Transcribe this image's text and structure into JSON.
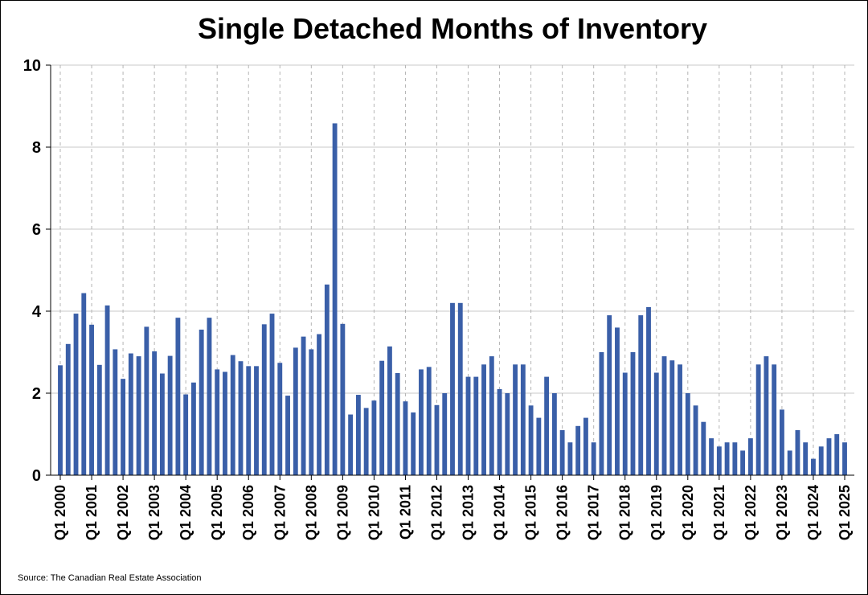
{
  "chart_data": {
    "type": "bar",
    "title": "Single Detached Months of Inventory",
    "xlabel": "",
    "ylabel": "",
    "ylim": [
      0,
      10
    ],
    "yticks": [
      0,
      2,
      4,
      6,
      8,
      10
    ],
    "grid": true,
    "bar_color": "#3A5FA8",
    "categories": [
      "Q1 2000",
      "Q2 2000",
      "Q3 2000",
      "Q4 2000",
      "Q1 2001",
      "Q2 2001",
      "Q3 2001",
      "Q4 2001",
      "Q1 2002",
      "Q2 2002",
      "Q3 2002",
      "Q4 2002",
      "Q1 2003",
      "Q2 2003",
      "Q3 2003",
      "Q4 2003",
      "Q1 2004",
      "Q2 2004",
      "Q3 2004",
      "Q4 2004",
      "Q1 2005",
      "Q2 2005",
      "Q3 2005",
      "Q4 2005",
      "Q1 2006",
      "Q2 2006",
      "Q3 2006",
      "Q4 2006",
      "Q1 2007",
      "Q2 2007",
      "Q3 2007",
      "Q4 2007",
      "Q1 2008",
      "Q2 2008",
      "Q3 2008",
      "Q4 2008",
      "Q1 2009",
      "Q2 2009",
      "Q3 2009",
      "Q4 2009",
      "Q1 2010",
      "Q2 2010",
      "Q3 2010",
      "Q4 2010",
      "Q1 2011",
      "Q2 2011",
      "Q3 2011",
      "Q4 2011",
      "Q1 2012",
      "Q2 2012",
      "Q3 2012",
      "Q4 2012",
      "Q1 2013",
      "Q2 2013",
      "Q3 2013",
      "Q4 2013",
      "Q1 2014",
      "Q2 2014",
      "Q3 2014",
      "Q4 2014",
      "Q1 2015",
      "Q2 2015",
      "Q3 2015",
      "Q4 2015",
      "Q1 2016",
      "Q2 2016",
      "Q3 2016",
      "Q4 2016",
      "Q1 2017",
      "Q2 2017",
      "Q3 2017",
      "Q4 2017",
      "Q1 2018",
      "Q2 2018",
      "Q3 2018",
      "Q4 2018",
      "Q1 2019",
      "Q2 2019",
      "Q3 2019",
      "Q4 2019",
      "Q1 2020",
      "Q2 2020",
      "Q3 2020",
      "Q4 2020",
      "Q1 2021",
      "Q2 2021",
      "Q3 2021",
      "Q4 2021",
      "Q1 2022",
      "Q2 2022",
      "Q3 2022",
      "Q4 2022",
      "Q1 2023",
      "Q2 2023",
      "Q3 2023",
      "Q4 2023",
      "Q1 2024",
      "Q2 2024",
      "Q3 2024",
      "Q4 2024",
      "Q1 2025"
    ],
    "xtick_labels": [
      "Q1 2000",
      "Q1 2001",
      "Q1 2002",
      "Q1 2003",
      "Q1 2004",
      "Q1 2005",
      "Q1 2006",
      "Q1 2007",
      "Q1 2008",
      "Q1 2009",
      "Q1 2010",
      "Q1 2011",
      "Q1 2012",
      "Q1 2013",
      "Q1 2014",
      "Q1 2015",
      "Q1 2016",
      "Q1 2017",
      "Q1 2018",
      "Q1 2019",
      "Q1 2020",
      "Q1 2021",
      "Q1 2022",
      "Q1 2023",
      "Q1 2024",
      "Q1 2025"
    ],
    "values": [
      2.68,
      3.2,
      3.94,
      4.44,
      3.67,
      2.69,
      4.14,
      3.07,
      2.35,
      2.97,
      2.9,
      3.62,
      3.02,
      2.48,
      2.91,
      3.84,
      1.97,
      2.26,
      3.55,
      3.84,
      2.58,
      2.52,
      2.93,
      2.78,
      2.66,
      2.66,
      3.68,
      3.94,
      2.74,
      1.94,
      3.11,
      3.38,
      3.07,
      3.44,
      4.65,
      8.58,
      3.69,
      1.48,
      1.96,
      1.64,
      1.82,
      2.79,
      3.14,
      2.49,
      1.8,
      1.53,
      2.58,
      2.64,
      1.71,
      2.0,
      4.2,
      4.2,
      2.4,
      2.4,
      2.7,
      2.9,
      2.1,
      2.0,
      2.7,
      2.7,
      1.7,
      1.4,
      2.4,
      2.0,
      1.1,
      0.8,
      1.2,
      1.4,
      0.8,
      3.0,
      3.9,
      3.6,
      2.5,
      3.0,
      3.9,
      4.1,
      2.5,
      2.9,
      2.8,
      2.7,
      2.0,
      1.7,
      1.3,
      0.9,
      0.7,
      0.8,
      0.8,
      0.6,
      0.9,
      2.7,
      2.9,
      2.7,
      1.6,
      0.6,
      1.1,
      0.8,
      0.4,
      0.7,
      0.9,
      1.0,
      0.8
    ]
  },
  "source": "Source: The Canadian Real Estate Association"
}
